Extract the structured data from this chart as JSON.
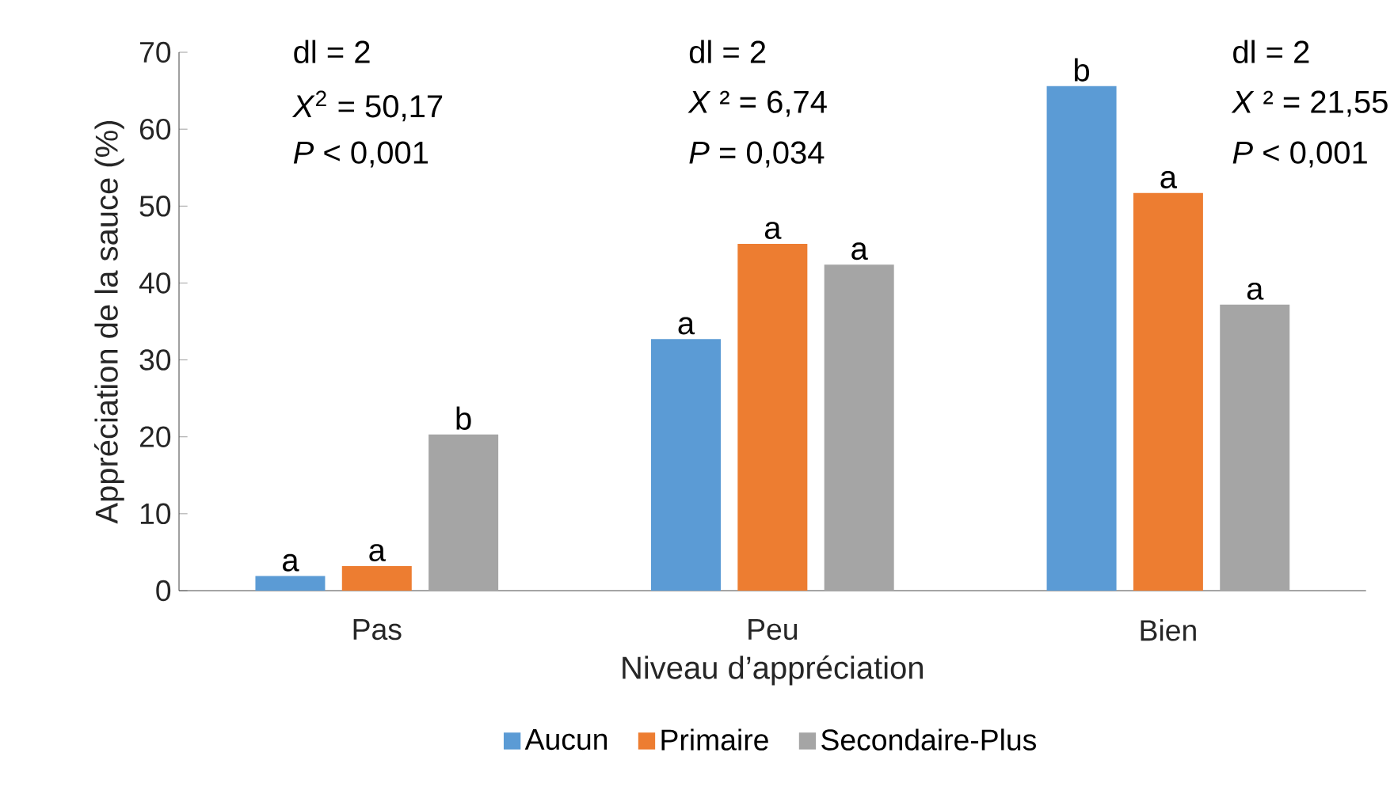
{
  "chart_data": {
    "type": "bar",
    "xlabel": "Niveau d’appréciation",
    "ylabel": "Appréciation de la sauce (%)",
    "categories": [
      "Pas",
      "Peu",
      "Bien"
    ],
    "series": [
      {
        "name": "Aucun",
        "color": "#5b9bd5",
        "values": [
          1.9,
          32.7,
          65.6
        ],
        "value_labels": [
          "a",
          "a",
          "b"
        ]
      },
      {
        "name": "Primaire",
        "color": "#ed7d31",
        "values": [
          3.2,
          45.1,
          51.7
        ],
        "value_labels": [
          "a",
          "a",
          "a"
        ]
      },
      {
        "name": "Secondaire-Plus",
        "color": "#a5a5a5",
        "values": [
          20.3,
          42.4,
          37.2
        ],
        "value_labels": [
          "b",
          "a",
          "a"
        ]
      }
    ],
    "ylim": [
      0,
      70
    ],
    "yticks": [
      0,
      10,
      20,
      30,
      40,
      50,
      60,
      70
    ],
    "legend": "bottom",
    "annotations": [
      "dl = 2",
      "*X*$^{2}$ = 50,17",
      "*P* < 0,001",
      "dl = 2",
      "*X* ² = 6,74",
      "*P* = 0,034",
      "dl = 2",
      "*X* ² = 21,55",
      "*P* < 0,001"
    ]
  }
}
